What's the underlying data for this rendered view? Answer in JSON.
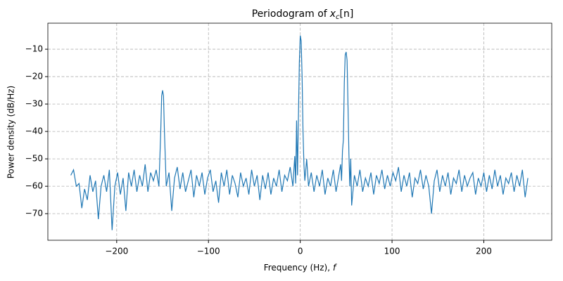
{
  "chart_data": {
    "type": "line",
    "title": {
      "text": "Periodogram of",
      "var": "x",
      "sub": "c",
      "arg": "[n]"
    },
    "xlabel": {
      "text": "Frequency (Hz),",
      "var": "f"
    },
    "ylabel": "Power density (dB/Hz)",
    "xlim": [
      -275,
      274
    ],
    "ylim": [
      -79.7,
      -0.5
    ],
    "xticks": [
      {
        "value": -200,
        "label": "−200"
      },
      {
        "value": -100,
        "label": "−100"
      },
      0,
      100,
      200
    ],
    "yticks": [
      {
        "value": -70,
        "label": "−70"
      },
      {
        "value": -60,
        "label": "−60"
      },
      {
        "value": -50,
        "label": "−50"
      },
      {
        "value": -40,
        "label": "−40"
      },
      {
        "value": -30,
        "label": "−30"
      },
      {
        "value": -20,
        "label": "−20"
      },
      {
        "value": -10,
        "label": "−10"
      }
    ],
    "grid": true,
    "x": [
      -250,
      -247,
      -244,
      -241,
      -238,
      -235,
      -232,
      -229,
      -226,
      -223,
      -220,
      -217,
      -214,
      -211,
      -208,
      -205,
      -202,
      -199,
      -196,
      -193,
      -190,
      -187,
      -184,
      -181,
      -178,
      -175,
      -172,
      -169,
      -166,
      -163,
      -160,
      -157,
      -154,
      -152,
      -151,
      -150,
      -149,
      -148,
      -146,
      -143,
      -140,
      -137,
      -134,
      -131,
      -128,
      -125,
      -122,
      -119,
      -116,
      -113,
      -110,
      -107,
      -104,
      -101,
      -98,
      -95,
      -92,
      -89,
      -86,
      -83,
      -80,
      -77,
      -74,
      -71,
      -68,
      -65,
      -62,
      -59,
      -56,
      -53,
      -50,
      -47,
      -44,
      -41,
      -38,
      -35,
      -32,
      -29,
      -26,
      -23,
      -20,
      -17,
      -14,
      -11,
      -8,
      -6,
      -5,
      -4,
      -3,
      -2,
      -1,
      0,
      1,
      2,
      3,
      4,
      5,
      7,
      9,
      12,
      15,
      18,
      21,
      24,
      27,
      30,
      33,
      36,
      39,
      42,
      44,
      45,
      46,
      47,
      48,
      49,
      50,
      51,
      52,
      53,
      54,
      55,
      56,
      59,
      62,
      65,
      68,
      71,
      74,
      77,
      80,
      83,
      86,
      89,
      92,
      95,
      98,
      101,
      104,
      107,
      110,
      113,
      116,
      119,
      122,
      125,
      128,
      131,
      134,
      137,
      140,
      143,
      146,
      149,
      152,
      155,
      158,
      161,
      164,
      167,
      170,
      173,
      176,
      179,
      182,
      185,
      188,
      191,
      194,
      197,
      200,
      203,
      206,
      209,
      212,
      215,
      218,
      221,
      224,
      227,
      230,
      233,
      236,
      239,
      242,
      245,
      248
    ],
    "series": [
      {
        "color": "#1f77b4",
        "values": [
          -56,
          -54,
          -60,
          -59,
          -68,
          -61,
          -65,
          -56,
          -62,
          -58,
          -72,
          -60,
          -56,
          -62,
          -54,
          -76,
          -60,
          -55,
          -63,
          -57,
          -69,
          -55,
          -60,
          -54,
          -62,
          -56,
          -60,
          -52,
          -62,
          -55,
          -58,
          -54,
          -60,
          -40,
          -27,
          -25,
          -27,
          -40,
          -60,
          -55,
          -69,
          -57,
          -53,
          -61,
          -55,
          -62,
          -58,
          -54,
          -64,
          -56,
          -60,
          -55,
          -63,
          -57,
          -54,
          -62,
          -58,
          -66,
          -55,
          -60,
          -54,
          -63,
          -56,
          -59,
          -64,
          -55,
          -60,
          -57,
          -63,
          -54,
          -60,
          -56,
          -65,
          -56,
          -61,
          -55,
          -63,
          -57,
          -60,
          -54,
          -62,
          -56,
          -58,
          -53,
          -60,
          -49,
          -59,
          -36,
          -56,
          -35,
          -15,
          -5,
          -7,
          -20,
          -40,
          -52,
          -58,
          -50,
          -60,
          -55,
          -62,
          -56,
          -60,
          -54,
          -63,
          -57,
          -60,
          -54,
          -62,
          -56,
          -52,
          -58,
          -47,
          -43,
          -22,
          -12,
          -11,
          -14,
          -30,
          -48,
          -60,
          -50,
          -67,
          -56,
          -60,
          -54,
          -62,
          -57,
          -60,
          -55,
          -63,
          -56,
          -59,
          -54,
          -61,
          -56,
          -60,
          -55,
          -58,
          -53,
          -62,
          -56,
          -60,
          -55,
          -64,
          -57,
          -59,
          -54,
          -61,
          -56,
          -60,
          -70,
          -58,
          -54,
          -62,
          -56,
          -60,
          -55,
          -63,
          -57,
          -59,
          -54,
          -62,
          -56,
          -60,
          -57,
          -55,
          -63,
          -57,
          -60,
          -55,
          -62,
          -56,
          -61,
          -54,
          -60,
          -56,
          -63,
          -57,
          -59,
          -55,
          -62,
          -56,
          -60,
          -54,
          -64,
          -57
        ]
      }
    ]
  }
}
